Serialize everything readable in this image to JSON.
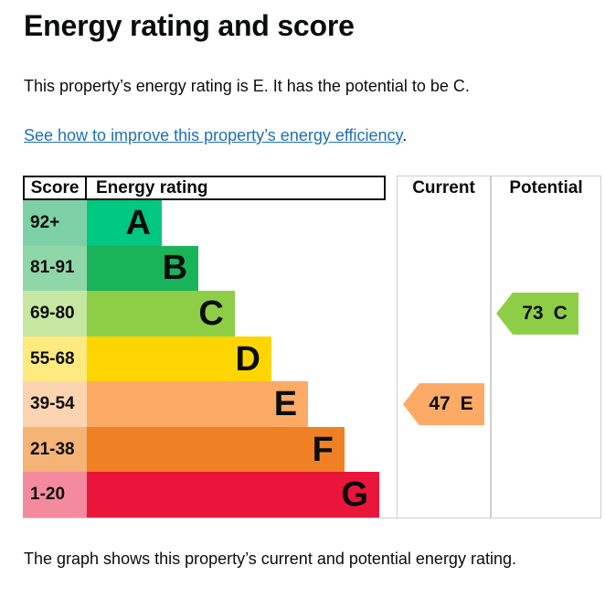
{
  "page": {
    "heading": "Energy rating and score",
    "intro": "This property’s energy rating is E. It has the potential to be C.",
    "improve_link": "See how to improve this property’s energy efficiency",
    "improve_link_suffix": ".",
    "footer_caption": "The graph shows this property’s current and potential energy rating.",
    "text_color": "#0b0c0c",
    "link_color": "#1d70b8",
    "grid_color": "#cfcfcf"
  },
  "chart_data": {
    "type": "bar",
    "title": "Energy rating and score",
    "legend_position": "none",
    "grid": false,
    "columns": [
      "Score",
      "Energy rating",
      "Current",
      "Potential"
    ],
    "bands": [
      {
        "letter": "A",
        "score_range": "92+",
        "bar_color": "#00c781",
        "score_cell_color": "#7ed0a6",
        "bar_width_pct": 24.1
      },
      {
        "letter": "B",
        "score_range": "81-91",
        "bar_color": "#19b459",
        "score_cell_color": "#8fd6a8",
        "bar_width_pct": 35.9
      },
      {
        "letter": "C",
        "score_range": "69-80",
        "bar_color": "#8dce46",
        "score_cell_color": "#c6e7a2",
        "bar_width_pct": 47.6
      },
      {
        "letter": "D",
        "score_range": "55-68",
        "bar_color": "#ffd500",
        "score_cell_color": "#ffea80",
        "bar_width_pct": 59.4
      },
      {
        "letter": "E",
        "score_range": "39-54",
        "bar_color": "#fcaa65",
        "score_cell_color": "#fdd4b2",
        "bar_width_pct": 71.2
      },
      {
        "letter": "F",
        "score_range": "21-38",
        "bar_color": "#ef8023",
        "score_cell_color": "#f5b375",
        "bar_width_pct": 82.9
      },
      {
        "letter": "G",
        "score_range": "1-20",
        "bar_color": "#e9153b",
        "score_cell_color": "#f48a9d",
        "bar_width_pct": 94.1
      }
    ],
    "current": {
      "label": "Current",
      "value": "47",
      "band": "E",
      "arrow_color": "#fcaa65"
    },
    "potential": {
      "label": "Potential",
      "value": "73",
      "band": "C",
      "arrow_color": "#8dce46"
    }
  }
}
